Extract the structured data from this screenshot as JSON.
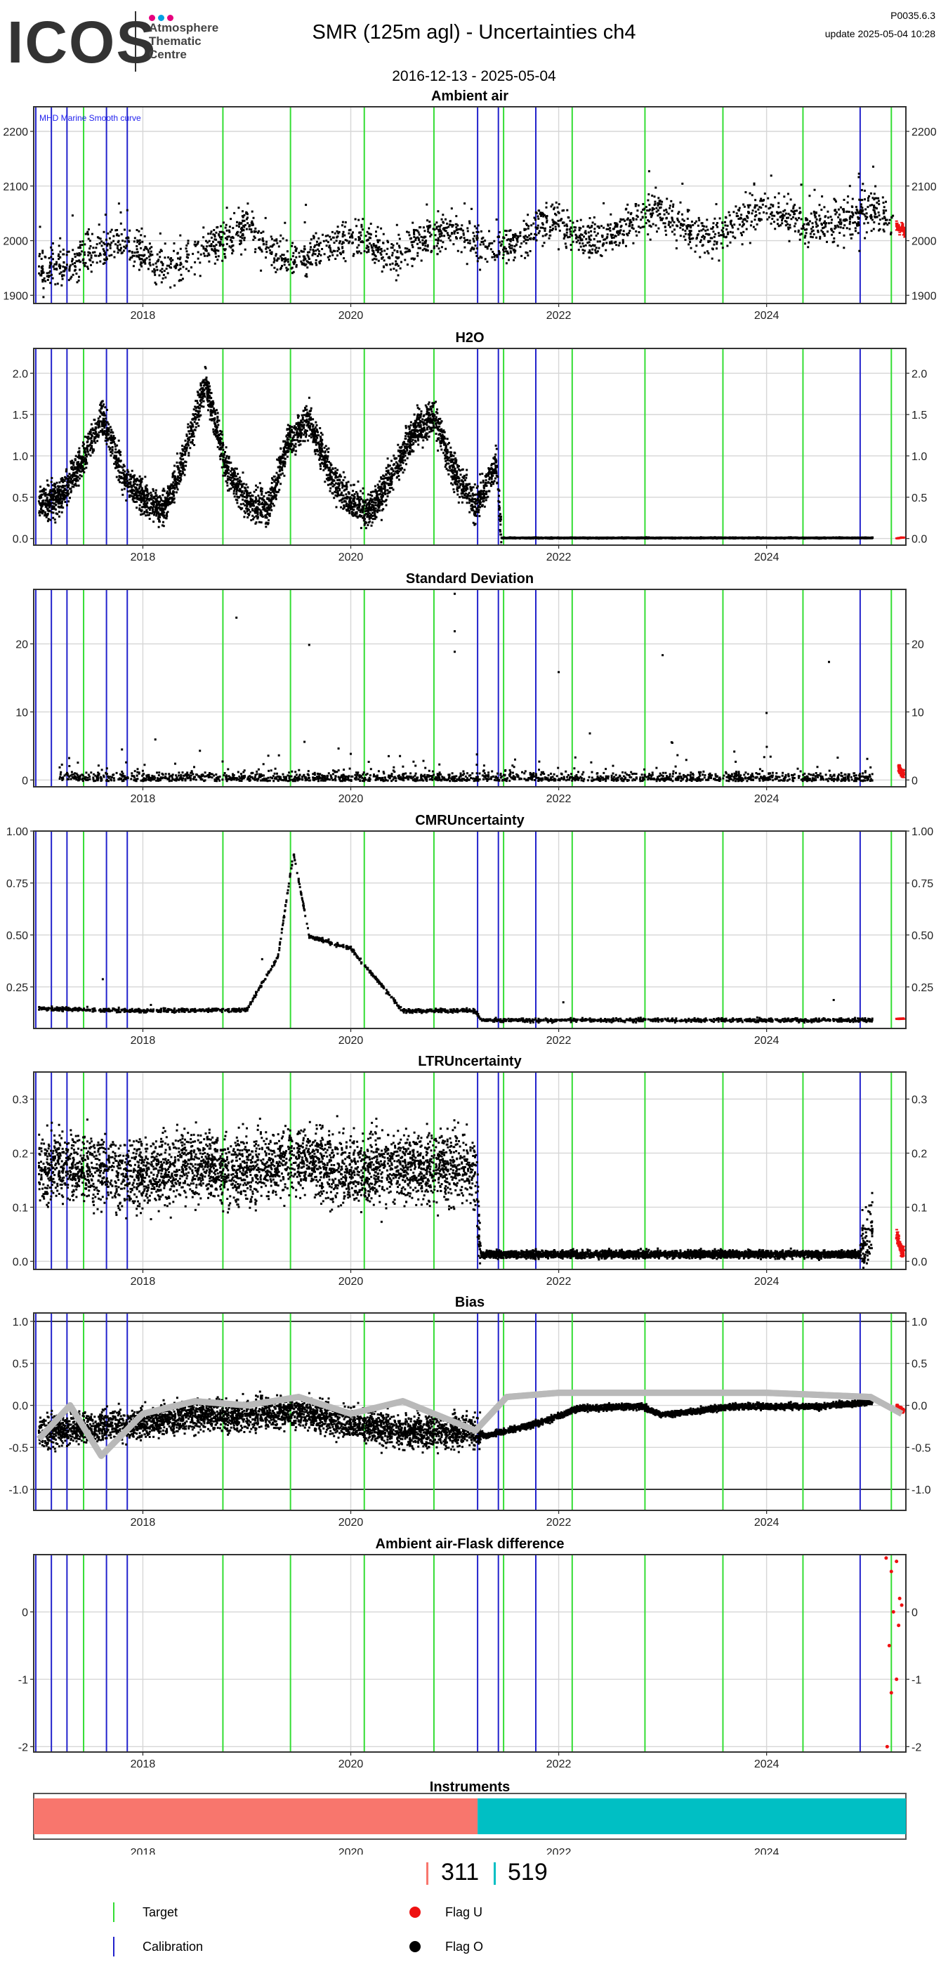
{
  "header": {
    "logo": "ICOS",
    "logo_subtitle": [
      "Atmosphere",
      "Thematic",
      "Centre"
    ],
    "title": "SMR  (125m agl) - Uncertainties ch4",
    "date_range": "2016-12-13 - 2025-05-04",
    "version": "P0035.6.3",
    "update": "update  2025-05-04 10:28"
  },
  "colors": {
    "target": "#33dd33",
    "calibration": "#2222cc",
    "flag_u": "#ee1111",
    "flag_o": "#000000",
    "instrument_311": "#f8766d",
    "instrument_519": "#00bfc4",
    "smooth_curve": "#b8b8b8",
    "logo_dots": [
      "#e6007e",
      "#00a0e3",
      "#e6007e"
    ]
  },
  "time_axis": {
    "start": 2016.95,
    "end": 2025.34,
    "tick_labels": [
      "2018",
      "2020",
      "2022",
      "2024"
    ],
    "tick_values": [
      2018,
      2020,
      2022,
      2024
    ]
  },
  "target_events": [
    2017.43,
    2018.77,
    2019.42,
    2020.13,
    2020.8,
    2021.47,
    2022.13,
    2022.83,
    2023.58,
    2024.35,
    2025.2
  ],
  "calibration_events": [
    2016.97,
    2017.12,
    2017.27,
    2017.65,
    2017.85,
    2021.22,
    2021.42,
    2021.78,
    2024.9
  ],
  "chart_data": [
    {
      "type": "scatter",
      "title": "Ambient air",
      "annotation": "MHD Marine Smooth curve",
      "y_ticks": [
        "1900",
        "2000",
        "2100",
        "2200"
      ],
      "ylim": [
        1885,
        2245
      ],
      "grid": true,
      "series": [
        {
          "values": [
            [
              2017.0,
              1950
            ],
            [
              2017.2,
              1955
            ],
            [
              2017.4,
              1968
            ],
            [
              2017.6,
              1990
            ],
            [
              2017.8,
              2005
            ],
            [
              2018.0,
              1975
            ],
            [
              2018.2,
              1955
            ],
            [
              2018.4,
              1960
            ],
            [
              2018.6,
              1985
            ],
            [
              2018.8,
              2000
            ],
            [
              2019.0,
              2035
            ],
            [
              2019.2,
              1990
            ],
            [
              2019.4,
              1965
            ],
            [
              2019.6,
              1975
            ],
            [
              2019.8,
              1990
            ],
            [
              2020.0,
              2010
            ],
            [
              2020.2,
              1995
            ],
            [
              2020.4,
              1970
            ],
            [
              2020.6,
              1990
            ],
            [
              2020.8,
              2015
            ],
            [
              2021.0,
              2020
            ],
            [
              2021.2,
              1995
            ],
            [
              2021.4,
              1985
            ],
            [
              2021.6,
              2000
            ],
            [
              2021.8,
              2030
            ],
            [
              2022.0,
              2040
            ],
            [
              2022.2,
              2010
            ],
            [
              2022.4,
              2000
            ],
            [
              2022.6,
              2020
            ],
            [
              2022.8,
              2050
            ],
            [
              2023.0,
              2055
            ],
            [
              2023.2,
              2035
            ],
            [
              2023.4,
              2005
            ],
            [
              2023.6,
              2020
            ],
            [
              2023.8,
              2045
            ],
            [
              2024.0,
              2065
            ],
            [
              2024.2,
              2045
            ],
            [
              2024.4,
              2030
            ],
            [
              2024.6,
              2030
            ],
            [
              2024.8,
              2045
            ],
            [
              2025.0,
              2055
            ],
            [
              2025.2,
              2035
            ]
          ]
        },
        {
          "flag": "U",
          "values": [
            [
              2025.25,
              2030
            ],
            [
              2025.28,
              2020
            ],
            [
              2025.31,
              2025
            ],
            [
              2025.33,
              2015
            ]
          ]
        }
      ]
    },
    {
      "type": "scatter",
      "title": "H2O",
      "y_ticks": [
        "0.0",
        "0.5",
        "1.0",
        "1.5",
        "2.0"
      ],
      "ylim": [
        -0.08,
        2.3
      ],
      "grid": true,
      "series": [
        {
          "values": [
            [
              2017.0,
              0.45
            ],
            [
              2017.2,
              0.5
            ],
            [
              2017.4,
              0.9
            ],
            [
              2017.6,
              1.5
            ],
            [
              2017.8,
              0.8
            ],
            [
              2018.0,
              0.5
            ],
            [
              2018.2,
              0.35
            ],
            [
              2018.4,
              1.0
            ],
            [
              2018.6,
              1.9
            ],
            [
              2018.8,
              0.9
            ],
            [
              2019.0,
              0.45
            ],
            [
              2019.2,
              0.35
            ],
            [
              2019.4,
              1.2
            ],
            [
              2019.6,
              1.45
            ],
            [
              2019.8,
              0.8
            ],
            [
              2020.0,
              0.45
            ],
            [
              2020.2,
              0.35
            ],
            [
              2020.4,
              0.8
            ],
            [
              2020.6,
              1.3
            ],
            [
              2020.8,
              1.5
            ],
            [
              2021.0,
              0.8
            ],
            [
              2021.2,
              0.4
            ],
            [
              2021.4,
              0.9
            ],
            [
              2021.45,
              0.02
            ],
            [
              2022.0,
              0.02
            ],
            [
              2023.0,
              0.02
            ],
            [
              2024.0,
              0.02
            ],
            [
              2025.0,
              0.02
            ]
          ]
        },
        {
          "flag": "U",
          "values": [
            [
              2025.25,
              0.01
            ],
            [
              2025.3,
              0.02
            ]
          ]
        }
      ]
    },
    {
      "type": "scatter",
      "title": "Standard Deviation",
      "y_ticks": [
        "0",
        "10",
        "20"
      ],
      "ylim": [
        -1,
        28
      ],
      "grid": true,
      "series": [
        {
          "values": [
            [
              2017.2,
              2
            ],
            [
              2018.0,
              1.5
            ],
            [
              2018.9,
              24
            ],
            [
              2019.6,
              20
            ],
            [
              2020.0,
              4
            ],
            [
              2021.0,
              27.5
            ],
            [
              2021.0,
              22
            ],
            [
              2021.0,
              19
            ],
            [
              2022.0,
              16
            ],
            [
              2022.3,
              7
            ],
            [
              2023.0,
              18.5
            ],
            [
              2024.0,
              10
            ],
            [
              2024.6,
              17.5
            ],
            [
              2025.0,
              2
            ]
          ]
        },
        {
          "flag": "U",
          "values": [
            [
              2025.27,
              2
            ],
            [
              2025.3,
              1
            ]
          ]
        }
      ]
    },
    {
      "type": "scatter",
      "title": "CMRUncertainty",
      "y_ticks": [
        "0.25",
        "0.50",
        "0.75",
        "1.00"
      ],
      "ylim": [
        0.05,
        1.0
      ],
      "grid": true,
      "series": [
        {
          "values": [
            [
              2017.0,
              0.15
            ],
            [
              2018.0,
              0.14
            ],
            [
              2019.0,
              0.145
            ],
            [
              2019.3,
              0.4
            ],
            [
              2019.45,
              0.9
            ],
            [
              2019.6,
              0.5
            ],
            [
              2020.0,
              0.44
            ],
            [
              2020.5,
              0.14
            ],
            [
              2021.2,
              0.14
            ],
            [
              2021.25,
              0.095
            ],
            [
              2022.0,
              0.095
            ],
            [
              2023.0,
              0.095
            ],
            [
              2024.0,
              0.095
            ],
            [
              2025.0,
              0.095
            ]
          ]
        },
        {
          "flag": "U",
          "values": [
            [
              2025.25,
              0.1
            ],
            [
              2025.3,
              0.1
            ]
          ]
        }
      ]
    },
    {
      "type": "scatter",
      "title": "LTRUncertainty",
      "y_ticks": [
        "0.0",
        "0.1",
        "0.2",
        "0.3"
      ],
      "ylim": [
        -0.015,
        0.35
      ],
      "grid": true,
      "series": [
        {
          "values": [
            [
              2017.0,
              0.18
            ],
            [
              2017.5,
              0.17
            ],
            [
              2018.0,
              0.16
            ],
            [
              2018.5,
              0.18
            ],
            [
              2019.0,
              0.17
            ],
            [
              2019.5,
              0.19
            ],
            [
              2020.0,
              0.17
            ],
            [
              2020.5,
              0.18
            ],
            [
              2021.2,
              0.17
            ],
            [
              2021.25,
              0.015
            ],
            [
              2022.0,
              0.015
            ],
            [
              2023.0,
              0.015
            ],
            [
              2024.0,
              0.015
            ],
            [
              2024.9,
              0.015
            ],
            [
              2025.0,
              0.06
            ]
          ]
        },
        {
          "flag": "U",
          "values": [
            [
              2025.25,
              0.05
            ],
            [
              2025.3,
              0.02
            ]
          ]
        }
      ]
    },
    {
      "type": "scatter",
      "title": "Bias",
      "y_ticks": [
        "-1.0",
        "-0.5",
        "0.0",
        "0.5",
        "1.0"
      ],
      "ylim": [
        -1.25,
        1.1
      ],
      "reference_lines": [
        1.0,
        -1.0
      ],
      "grid": true,
      "series": [
        {
          "values": [
            [
              2017.0,
              -0.3
            ],
            [
              2017.5,
              -0.25
            ],
            [
              2018.0,
              -0.2
            ],
            [
              2018.5,
              -0.1
            ],
            [
              2019.0,
              -0.1
            ],
            [
              2019.5,
              -0.05
            ],
            [
              2020.0,
              -0.2
            ],
            [
              2020.5,
              -0.3
            ],
            [
              2021.2,
              -0.3
            ],
            [
              2021.3,
              -0.35
            ],
            [
              2021.8,
              -0.2
            ],
            [
              2022.2,
              -0.02
            ],
            [
              2022.8,
              0.0
            ],
            [
              2023.0,
              -0.1
            ],
            [
              2023.7,
              0.0
            ],
            [
              2024.5,
              0.0
            ],
            [
              2025.0,
              0.05
            ]
          ]
        },
        {
          "name": "MHD Marine Smooth curve",
          "values": [
            [
              2017.0,
              -0.4
            ],
            [
              2017.3,
              0.0
            ],
            [
              2017.6,
              -0.6
            ],
            [
              2018.0,
              -0.1
            ],
            [
              2018.5,
              0.05
            ],
            [
              2019.0,
              0.0
            ],
            [
              2019.5,
              0.1
            ],
            [
              2020.0,
              -0.1
            ],
            [
              2020.5,
              0.05
            ],
            [
              2021.0,
              -0.2
            ],
            [
              2021.2,
              -0.3
            ],
            [
              2021.5,
              0.1
            ],
            [
              2022.0,
              0.15
            ],
            [
              2023.0,
              0.15
            ],
            [
              2024.0,
              0.15
            ],
            [
              2025.0,
              0.1
            ],
            [
              2025.3,
              -0.1
            ]
          ]
        },
        {
          "flag": "U",
          "values": [
            [
              2025.25,
              0.0
            ],
            [
              2025.3,
              -0.05
            ]
          ]
        }
      ]
    },
    {
      "type": "scatter",
      "title": "Ambient air-Flask difference",
      "y_ticks": [
        "-2",
        "-1",
        "0"
      ],
      "ylim": [
        -2.08,
        0.85
      ],
      "grid": true,
      "series": [
        {
          "flag": "U",
          "values": [
            [
              2025.15,
              0.8
            ],
            [
              2025.2,
              0.6
            ],
            [
              2025.25,
              0.75
            ],
            [
              2025.28,
              0.2
            ],
            [
              2025.22,
              0.0
            ],
            [
              2025.18,
              -0.5
            ],
            [
              2025.25,
              -1.0
            ],
            [
              2025.2,
              -1.2
            ],
            [
              2025.16,
              -2.0
            ],
            [
              2025.3,
              0.1
            ],
            [
              2025.27,
              -0.2
            ]
          ]
        }
      ]
    },
    {
      "type": "bar",
      "title": "Instruments",
      "categories": [
        "311",
        "519"
      ],
      "series": [
        {
          "name": "311",
          "values": [
            [
              2016.95,
              2021.22
            ]
          ]
        },
        {
          "name": "519",
          "values": [
            [
              2021.22,
              2025.34
            ]
          ]
        }
      ]
    }
  ],
  "footer": {
    "count_311": "311",
    "count_519": "519",
    "legend": {
      "target": "Target",
      "calibration": "Calibration",
      "flag_u": "Flag U",
      "flag_o": "Flag O"
    }
  }
}
